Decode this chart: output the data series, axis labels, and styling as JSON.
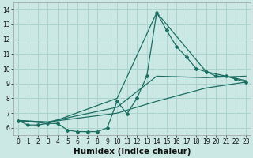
{
  "xlabel": "Humidex (Indice chaleur)",
  "bg_color": "#cce8e4",
  "grid_color": "#aad4cf",
  "line_color": "#1a6e62",
  "xlim": [
    -0.5,
    23.5
  ],
  "ylim": [
    5.5,
    14.5
  ],
  "xticks": [
    0,
    1,
    2,
    3,
    4,
    5,
    6,
    7,
    8,
    9,
    10,
    11,
    12,
    13,
    14,
    15,
    16,
    17,
    18,
    19,
    20,
    21,
    22,
    23
  ],
  "yticks": [
    6,
    7,
    8,
    9,
    10,
    11,
    12,
    13,
    14
  ],
  "line1_x": [
    0,
    1,
    2,
    3,
    4,
    5,
    6,
    7,
    8,
    9,
    10,
    11,
    12,
    13,
    14,
    15,
    16,
    17,
    18,
    19,
    20,
    21,
    22,
    23
  ],
  "line1_y": [
    6.5,
    6.2,
    6.2,
    6.3,
    6.3,
    5.85,
    5.75,
    5.75,
    5.75,
    6.0,
    7.8,
    6.95,
    8.0,
    9.5,
    13.8,
    12.6,
    11.5,
    10.8,
    10.0,
    9.8,
    9.5,
    9.5,
    9.3,
    9.1
  ],
  "line2_x": [
    0,
    3,
    10,
    14,
    19,
    23
  ],
  "line2_y": [
    6.5,
    6.3,
    8.0,
    13.8,
    9.8,
    9.2
  ],
  "line3_x": [
    0,
    3,
    10,
    14,
    19,
    23
  ],
  "line3_y": [
    6.5,
    6.4,
    7.4,
    9.5,
    9.4,
    9.5
  ],
  "line4_x": [
    0,
    3,
    10,
    14,
    19,
    23
  ],
  "line4_y": [
    6.5,
    6.4,
    7.0,
    7.8,
    8.7,
    9.1
  ],
  "xlabel_fontsize": 7.5,
  "tick_fontsize": 5.5
}
